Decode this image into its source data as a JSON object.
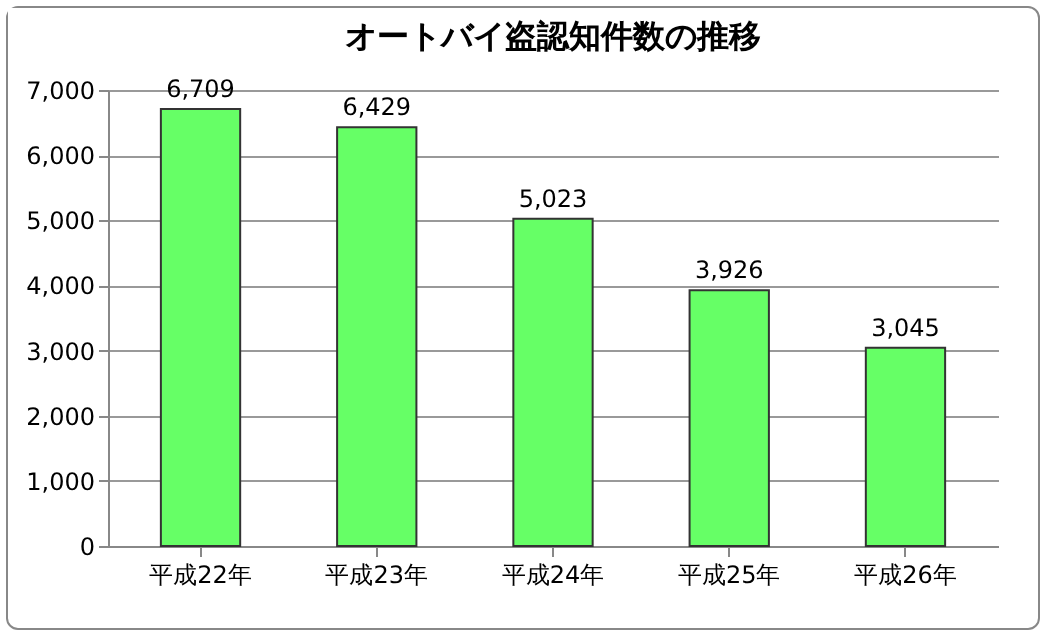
{
  "chart_data": {
    "type": "bar",
    "title": "オートバイ盗認知件数の推移",
    "categories": [
      "平成22年",
      "平成23年",
      "平成24年",
      "平成25年",
      "平成26年"
    ],
    "values": [
      6709,
      6429,
      5023,
      3926,
      3045
    ],
    "value_labels": [
      "6,709",
      "6,429",
      "5,023",
      "3,926",
      "3,045"
    ],
    "color": "#66ff66",
    "ylim": [
      0,
      7000
    ],
    "yticks": [
      {
        "value": 0,
        "label": "0"
      },
      {
        "value": 1000,
        "label": "1,000"
      },
      {
        "value": 2000,
        "label": "2,000"
      },
      {
        "value": 3000,
        "label": "3,000"
      },
      {
        "value": 4000,
        "label": "4,000"
      },
      {
        "value": 5000,
        "label": "5,000"
      },
      {
        "value": 6000,
        "label": "6,000"
      },
      {
        "value": 7000,
        "label": "7,000"
      }
    ],
    "grid": "y"
  }
}
